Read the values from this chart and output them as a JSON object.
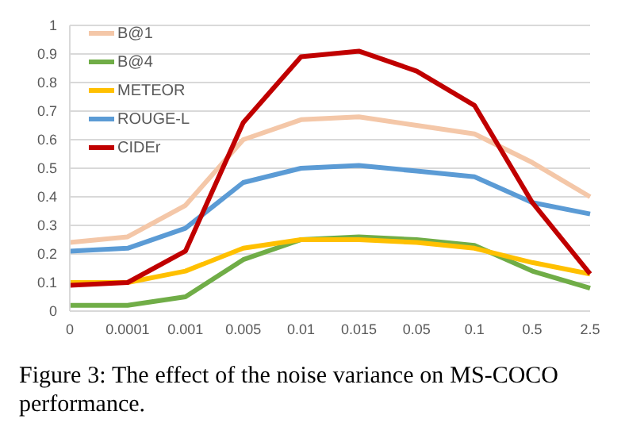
{
  "chart_data": {
    "type": "line",
    "categories": [
      "0",
      "0.0001",
      "0.001",
      "0.005",
      "0.01",
      "0.015",
      "0.05",
      "0.1",
      "0.5",
      "2.5"
    ],
    "series": [
      {
        "name": "B@1",
        "color": "#f4c7a8",
        "values": [
          0.24,
          0.26,
          0.37,
          0.6,
          0.67,
          0.68,
          0.65,
          0.62,
          0.52,
          0.4
        ]
      },
      {
        "name": "B@4",
        "color": "#70ad47",
        "values": [
          0.02,
          0.02,
          0.05,
          0.18,
          0.25,
          0.26,
          0.25,
          0.23,
          0.14,
          0.08
        ]
      },
      {
        "name": "METEOR",
        "color": "#ffc000",
        "values": [
          0.1,
          0.1,
          0.14,
          0.22,
          0.25,
          0.25,
          0.24,
          0.22,
          0.17,
          0.13
        ]
      },
      {
        "name": "ROUGE-L",
        "color": "#5b9bd5",
        "values": [
          0.21,
          0.22,
          0.29,
          0.45,
          0.5,
          0.51,
          0.49,
          0.47,
          0.38,
          0.34
        ]
      },
      {
        "name": "CIDEr",
        "color": "#c00000",
        "values": [
          0.09,
          0.1,
          0.21,
          0.66,
          0.89,
          0.91,
          0.84,
          0.72,
          0.38,
          0.13
        ]
      }
    ],
    "ylim": [
      0,
      1
    ],
    "yticks": [
      0,
      0.1,
      0.2,
      0.3,
      0.4,
      0.5,
      0.6,
      0.7,
      0.8,
      0.9,
      1
    ],
    "grid": "y",
    "legend": "top left",
    "marker": "none",
    "line_style": "solid",
    "annotations": [
      "Figure 3:  The effect of the noise variance on MS-COCO performance."
    ]
  }
}
